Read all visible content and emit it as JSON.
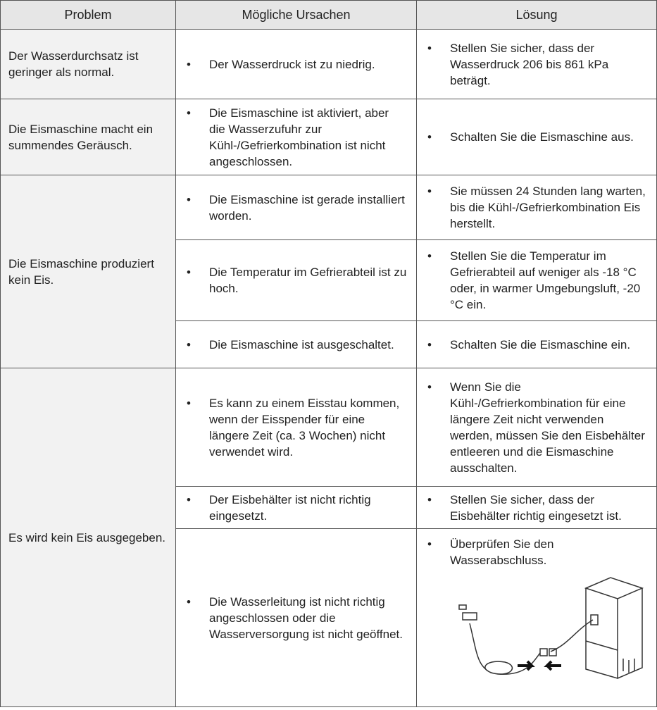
{
  "table": {
    "header": [
      "Problem",
      "Mögliche Ursachen",
      "Lösung"
    ],
    "rows": [
      {
        "problem": "Der Wasserdurchsatz ist geringer als normal.",
        "items": [
          {
            "cause": "Der Wasserdruck ist zu niedrig.",
            "solution": "Stellen Sie sicher, dass der Wasserdruck 206 bis 861 kPa beträgt."
          }
        ]
      },
      {
        "problem": "Die Eismaschine macht ein summendes Geräusch.",
        "items": [
          {
            "cause": "Die Eismaschine ist aktiviert, aber die Wasserzufuhr zur Kühl-/Gefrierkombination ist nicht angeschlossen.",
            "solution": "Schalten Sie die Eismaschine aus."
          }
        ]
      },
      {
        "problem": "Die Eismaschine produziert kein Eis.",
        "items": [
          {
            "cause": "Die Eismaschine ist gerade installiert worden.",
            "solution": "Sie müssen 24 Stunden lang warten, bis die Kühl-/Gefrierkombination Eis herstellt."
          },
          {
            "cause": "Die Temperatur im Gefrierabteil ist zu hoch.",
            "solution": "Stellen Sie die Temperatur im Gefrierabteil auf weniger als -18 °C oder, in warmer Umgebungsluft, -20 °C ein."
          },
          {
            "cause": "Die Eismaschine ist ausgeschaltet.",
            "solution": "Schalten Sie die Eismaschine ein."
          }
        ]
      },
      {
        "problem": "Es wird kein Eis ausgegeben.",
        "items": [
          {
            "cause": "Es kann zu einem Eisstau kommen, wenn der Eisspender für eine längere Zeit (ca. 3 Wochen) nicht verwendet wird.",
            "solution": "Wenn Sie die Kühl-/Gefrierkombination für eine längere Zeit nicht verwenden werden, müssen Sie den Eisbehälter entleeren und die Eismaschine ausschalten."
          },
          {
            "cause": "Der Eisbehälter ist nicht richtig eingesetzt.",
            "solution": "Stellen Sie sicher, dass der Eisbehälter richtig eingesetzt ist."
          },
          {
            "cause": "Die Wasserleitung ist nicht richtig angeschlossen oder die Wasserversorgung ist nicht geöffnet.",
            "solution": "Überprüfen Sie den Wasserabschluss."
          }
        ]
      }
    ]
  }
}
